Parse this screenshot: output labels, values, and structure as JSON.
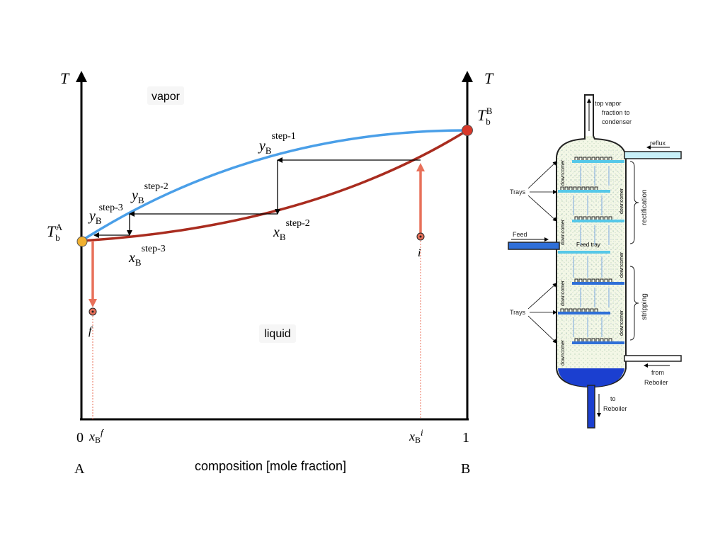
{
  "phase_diagram": {
    "axis_T_left": "T",
    "axis_T_right": "T",
    "region_vapor": "vapor",
    "region_liquid": "liquid",
    "xaxis_label": "composition [mole fraction]",
    "tick_zero": "0",
    "tick_one": "1",
    "comp_A": "A",
    "comp_B": "B",
    "Tb_A": {
      "main": "T",
      "sub": "b",
      "sup": "A"
    },
    "Tb_B": {
      "main": "T",
      "sub": "b",
      "sup": "B"
    },
    "y_step1": {
      "main": "y",
      "sub": "B",
      "sup": "step-1"
    },
    "y_step2": {
      "main": "y",
      "sub": "B",
      "sup": "step-2"
    },
    "y_step3": {
      "main": "y",
      "sub": "B",
      "sup": "step-3"
    },
    "x_step2": {
      "main": "x",
      "sub": "B",
      "sup": "step-2"
    },
    "x_step3": {
      "main": "x",
      "sub": "B",
      "sup": "step-3"
    },
    "x_f": {
      "main": "x",
      "sub": "B",
      "sup": "f"
    },
    "x_i": {
      "main": "x",
      "sub": "B",
      "sup": "i"
    },
    "point_f": "f",
    "point_i": "i",
    "colors": {
      "vapor_curve": "#4a9fe8",
      "liquid_curve": "#a92c1f",
      "arrow": "#e8705a",
      "point_A": "#f0b030",
      "point_B": "#d8382a"
    }
  },
  "column": {
    "top_vapor": [
      "top vapor",
      "fraction to",
      "condenser"
    ],
    "reflux": "reflux",
    "trays_label": "Trays",
    "feed": "Feed",
    "feed_tray": "Feed tray",
    "downcomer": "downcomer",
    "rectification": "rectification",
    "stripping": "stripping",
    "from_reboiler": [
      "from",
      "Reboiler"
    ],
    "to_reboiler": [
      "to",
      "Reboiler"
    ]
  }
}
